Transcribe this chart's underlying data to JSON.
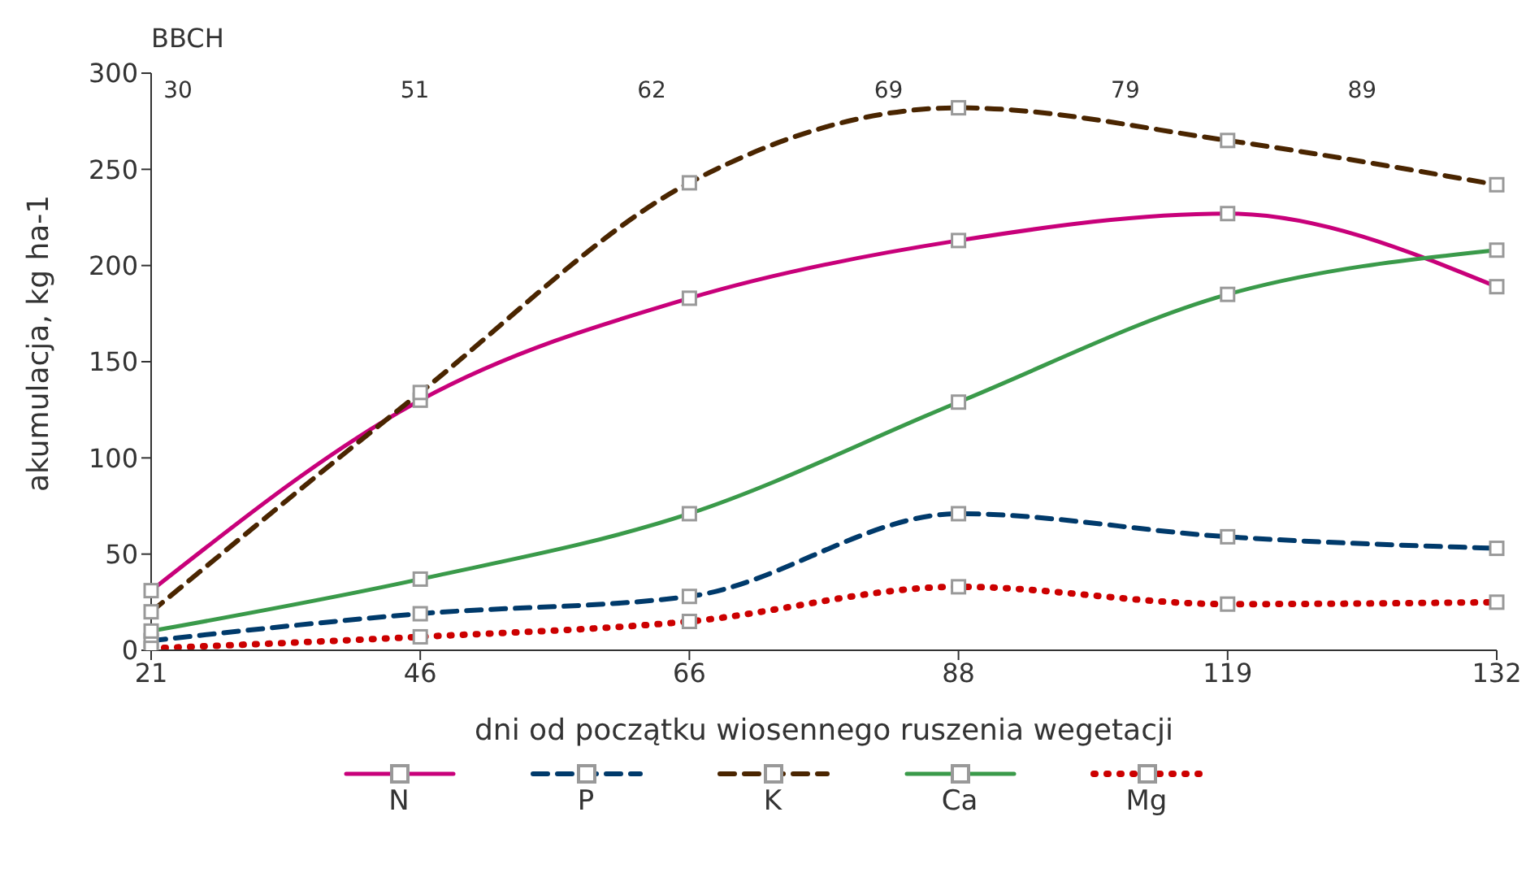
{
  "chart_data": {
    "type": "line",
    "xlabel": "dni od początku wiosennego ruszenia wegetacji",
    "ylabel": "akumulacja, kg ha-1",
    "x2label": "BBCH",
    "annotations": [
      "30",
      "51",
      "62",
      "69",
      "79",
      "89"
    ],
    "categories": [
      "21",
      "46",
      "66",
      "88",
      "119",
      "132"
    ],
    "series": [
      {
        "name": "N",
        "color": "#c8007a",
        "line_style": "solid",
        "values": [
          31,
          130,
          183,
          213,
          227,
          189
        ]
      },
      {
        "name": "P",
        "color": "#003a6b",
        "line_style": "dashed",
        "values": [
          5,
          19,
          28,
          71,
          59,
          53
        ]
      },
      {
        "name": "K",
        "color": "#4a2500",
        "line_style": "dashed",
        "values": [
          20,
          134,
          243,
          282,
          265,
          242
        ]
      },
      {
        "name": "Ca",
        "color": "#3a9a4a",
        "line_style": "solid",
        "values": [
          10,
          37,
          71,
          129,
          185,
          208
        ]
      },
      {
        "name": "Mg",
        "color": "#cc0000",
        "line_style": "dotted",
        "values": [
          1,
          7,
          15,
          33,
          24,
          25
        ]
      }
    ],
    "ylim": [
      0,
      300
    ],
    "yticks": [
      0,
      50,
      100,
      150,
      200,
      250,
      300
    ],
    "legend": "bottom",
    "marker": "square"
  }
}
